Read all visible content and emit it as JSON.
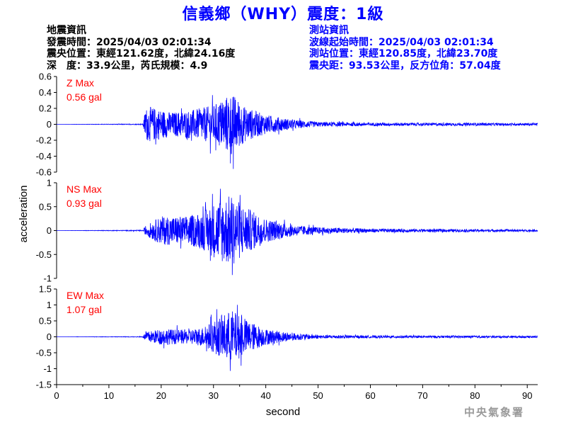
{
  "title": "信義鄉（WHY）震度：1級",
  "quake_info": {
    "heading": "地震資訊",
    "time": "發震時間：2025/04/03 02:01:34",
    "epicenter": "震央位置：東經121.62度，北緯24.16度",
    "depth_magnitude": "深　度：33.9公里，芮氏規模：4.9"
  },
  "station_info": {
    "heading": "測站資訊",
    "wave_start": "波線起始時間：2025/04/03 02:01:34",
    "location": "測站位置：東經120.85度，北緯23.70度",
    "distance": "震央距：93.53公里，反方位角：57.04度"
  },
  "footer": "中央氣象署",
  "colors": {
    "trace": "#0000ff",
    "max_label": "#ff0000",
    "axis": "#000000",
    "title": "#0000ff"
  },
  "chart_data": {
    "type": "line",
    "xlabel": "second",
    "ylabel": "acceleration",
    "xlim": [
      0,
      92
    ],
    "x_ticks": [
      "0",
      "10",
      "20",
      "30",
      "40",
      "50",
      "60",
      "70",
      "80",
      "90"
    ],
    "grid": false,
    "panels": [
      {
        "name": "Z",
        "max_label": "Z Max",
        "max_value": "0.56 gal",
        "ylim": [
          -0.6,
          0.6
        ],
        "y_ticks": [
          "0.6",
          "0.4",
          "0.2",
          "0",
          "-0.2",
          "-0.4",
          "-0.6"
        ],
        "envelope": [
          {
            "x": 0,
            "amp": 0.0
          },
          {
            "x": 16.5,
            "amp": 0.005
          },
          {
            "x": 17,
            "amp": 0.2
          },
          {
            "x": 18,
            "amp": 0.22
          },
          {
            "x": 22,
            "amp": 0.15
          },
          {
            "x": 26,
            "amp": 0.18
          },
          {
            "x": 30,
            "amp": 0.24
          },
          {
            "x": 33.5,
            "amp": 0.4
          },
          {
            "x": 36,
            "amp": 0.22
          },
          {
            "x": 40,
            "amp": 0.12
          },
          {
            "x": 45,
            "amp": 0.06
          },
          {
            "x": 50,
            "amp": 0.03
          },
          {
            "x": 60,
            "amp": 0.02
          },
          {
            "x": 92,
            "amp": 0.015
          }
        ],
        "peak": {
          "x": 33.8,
          "value": -0.56
        }
      },
      {
        "name": "NS",
        "max_label": "NS Max",
        "max_value": "0.93 gal",
        "ylim": [
          -1,
          1
        ],
        "y_ticks": [
          "1",
          "0.5",
          "0",
          "-0.5",
          "-1"
        ],
        "envelope": [
          {
            "x": 0,
            "amp": 0.0
          },
          {
            "x": 16.5,
            "amp": 0.01
          },
          {
            "x": 17,
            "amp": 0.1
          },
          {
            "x": 20,
            "amp": 0.3
          },
          {
            "x": 25,
            "amp": 0.3
          },
          {
            "x": 28,
            "amp": 0.4
          },
          {
            "x": 31,
            "amp": 0.65
          },
          {
            "x": 33.5,
            "amp": 0.75
          },
          {
            "x": 36,
            "amp": 0.5
          },
          {
            "x": 40,
            "amp": 0.25
          },
          {
            "x": 45,
            "amp": 0.12
          },
          {
            "x": 50,
            "amp": 0.07
          },
          {
            "x": 60,
            "amp": 0.04
          },
          {
            "x": 92,
            "amp": 0.02
          }
        ],
        "peak": {
          "x": 33.6,
          "value": -0.93
        }
      },
      {
        "name": "EW",
        "max_label": "EW Max",
        "max_value": "1.07 gal",
        "ylim": [
          -1.5,
          1.5
        ],
        "y_ticks": [
          "1.5",
          "1",
          "0.5",
          "0",
          "-0.5",
          "-1",
          "-1.5"
        ],
        "envelope": [
          {
            "x": 0,
            "amp": 0.0
          },
          {
            "x": 16.5,
            "amp": 0.01
          },
          {
            "x": 17,
            "amp": 0.15
          },
          {
            "x": 20,
            "amp": 0.25
          },
          {
            "x": 25,
            "amp": 0.22
          },
          {
            "x": 28,
            "amp": 0.3
          },
          {
            "x": 31,
            "amp": 0.6
          },
          {
            "x": 33.5,
            "amp": 0.85
          },
          {
            "x": 36,
            "amp": 0.55
          },
          {
            "x": 40,
            "amp": 0.25
          },
          {
            "x": 45,
            "amp": 0.12
          },
          {
            "x": 50,
            "amp": 0.06
          },
          {
            "x": 60,
            "amp": 0.04
          },
          {
            "x": 92,
            "amp": 0.03
          }
        ],
        "peak": {
          "x": 33.2,
          "value": -1.07
        }
      }
    ]
  }
}
